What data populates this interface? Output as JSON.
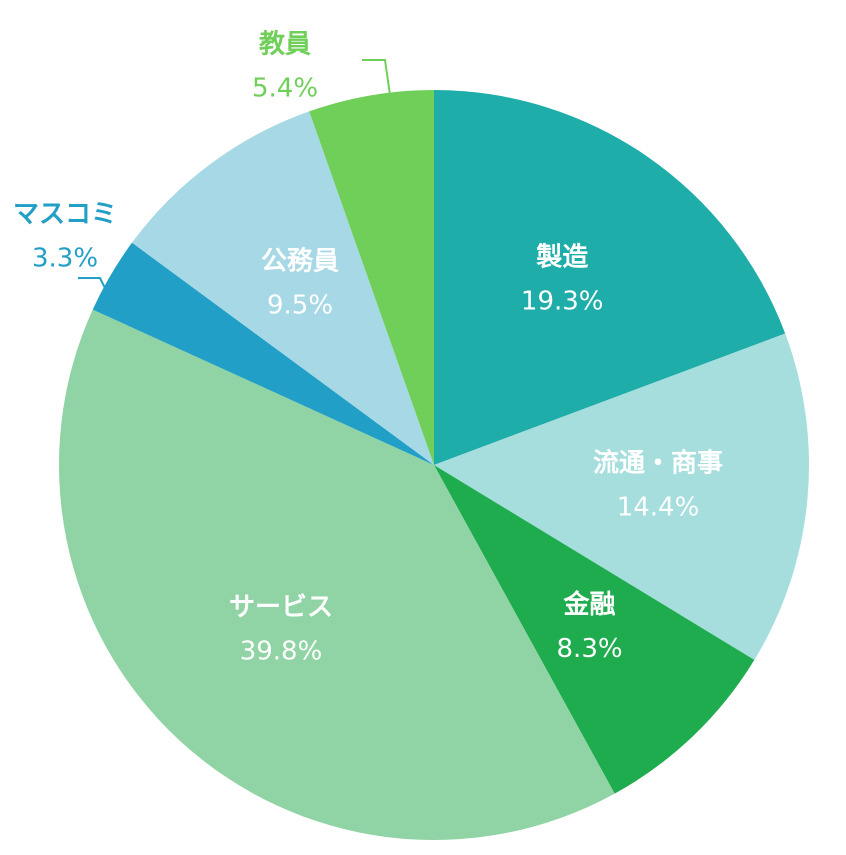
{
  "chart_data": {
    "type": "pie",
    "categories": [
      "製造",
      "流通・商事",
      "金融",
      "サービス",
      "マスコミ",
      "公務員",
      "教員"
    ],
    "values": [
      19.3,
      14.4,
      8.3,
      39.8,
      3.3,
      9.5,
      5.4
    ],
    "value_labels": [
      "19.3%",
      "14.4%",
      "8.3%",
      "39.8%",
      "3.3%",
      "9.5%",
      "5.4%"
    ],
    "colors": [
      "#1fada9",
      "#a5dedd",
      "#1fac4e",
      "#90d3a5",
      "#229fc6",
      "#a7d8e6",
      "#6fcf58"
    ]
  }
}
